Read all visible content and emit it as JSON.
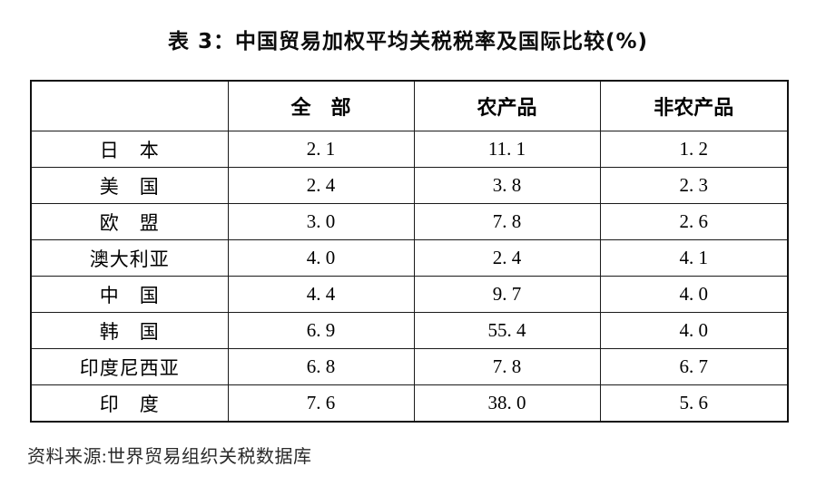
{
  "page": {
    "title": "表 3：中国贸易加权平均关税税率及国际比较(%)",
    "source_note": "资料来源:世界贸易组织关税数据库"
  },
  "table": {
    "columns": [
      "",
      "全　部",
      "农产品",
      "非农产品"
    ],
    "rows": [
      {
        "label": "日　本",
        "values": [
          "2. 1",
          "11. 1",
          "1. 2"
        ]
      },
      {
        "label": "美　国",
        "values": [
          "2. 4",
          "3. 8",
          "2. 3"
        ]
      },
      {
        "label": "欧　盟",
        "values": [
          "3. 0",
          "7. 8",
          "2. 6"
        ]
      },
      {
        "label": "澳大利亚",
        "values": [
          "4. 0",
          "2. 4",
          "4. 1"
        ]
      },
      {
        "label": "中　国",
        "values": [
          "4. 4",
          "9. 7",
          "4. 0"
        ]
      },
      {
        "label": "韩　国",
        "values": [
          "6. 9",
          "55. 4",
          "4. 0"
        ]
      },
      {
        "label": "印度尼西亚",
        "values": [
          "6. 8",
          "7. 8",
          "6. 7"
        ]
      },
      {
        "label": "印　度",
        "values": [
          "7. 6",
          "38. 0",
          "5. 6"
        ]
      }
    ]
  },
  "chart_data": {
    "type": "table",
    "title": "表 3：中国贸易加权平均关税税率及国际比较(%)",
    "columns": [
      "全部",
      "农产品",
      "非农产品"
    ],
    "categories": [
      "日本",
      "美国",
      "欧盟",
      "澳大利亚",
      "中国",
      "韩国",
      "印度尼西亚",
      "印度"
    ],
    "series": [
      {
        "name": "全部",
        "values": [
          2.1,
          2.4,
          3.0,
          4.0,
          4.4,
          6.9,
          6.8,
          7.6
        ]
      },
      {
        "name": "农产品",
        "values": [
          11.1,
          3.8,
          7.8,
          2.4,
          9.7,
          55.4,
          7.8,
          38.0
        ]
      },
      {
        "name": "非农产品",
        "values": [
          1.2,
          2.3,
          2.6,
          4.1,
          4.0,
          4.0,
          6.7,
          5.6
        ]
      }
    ],
    "source": "世界贸易组织关税数据库"
  }
}
